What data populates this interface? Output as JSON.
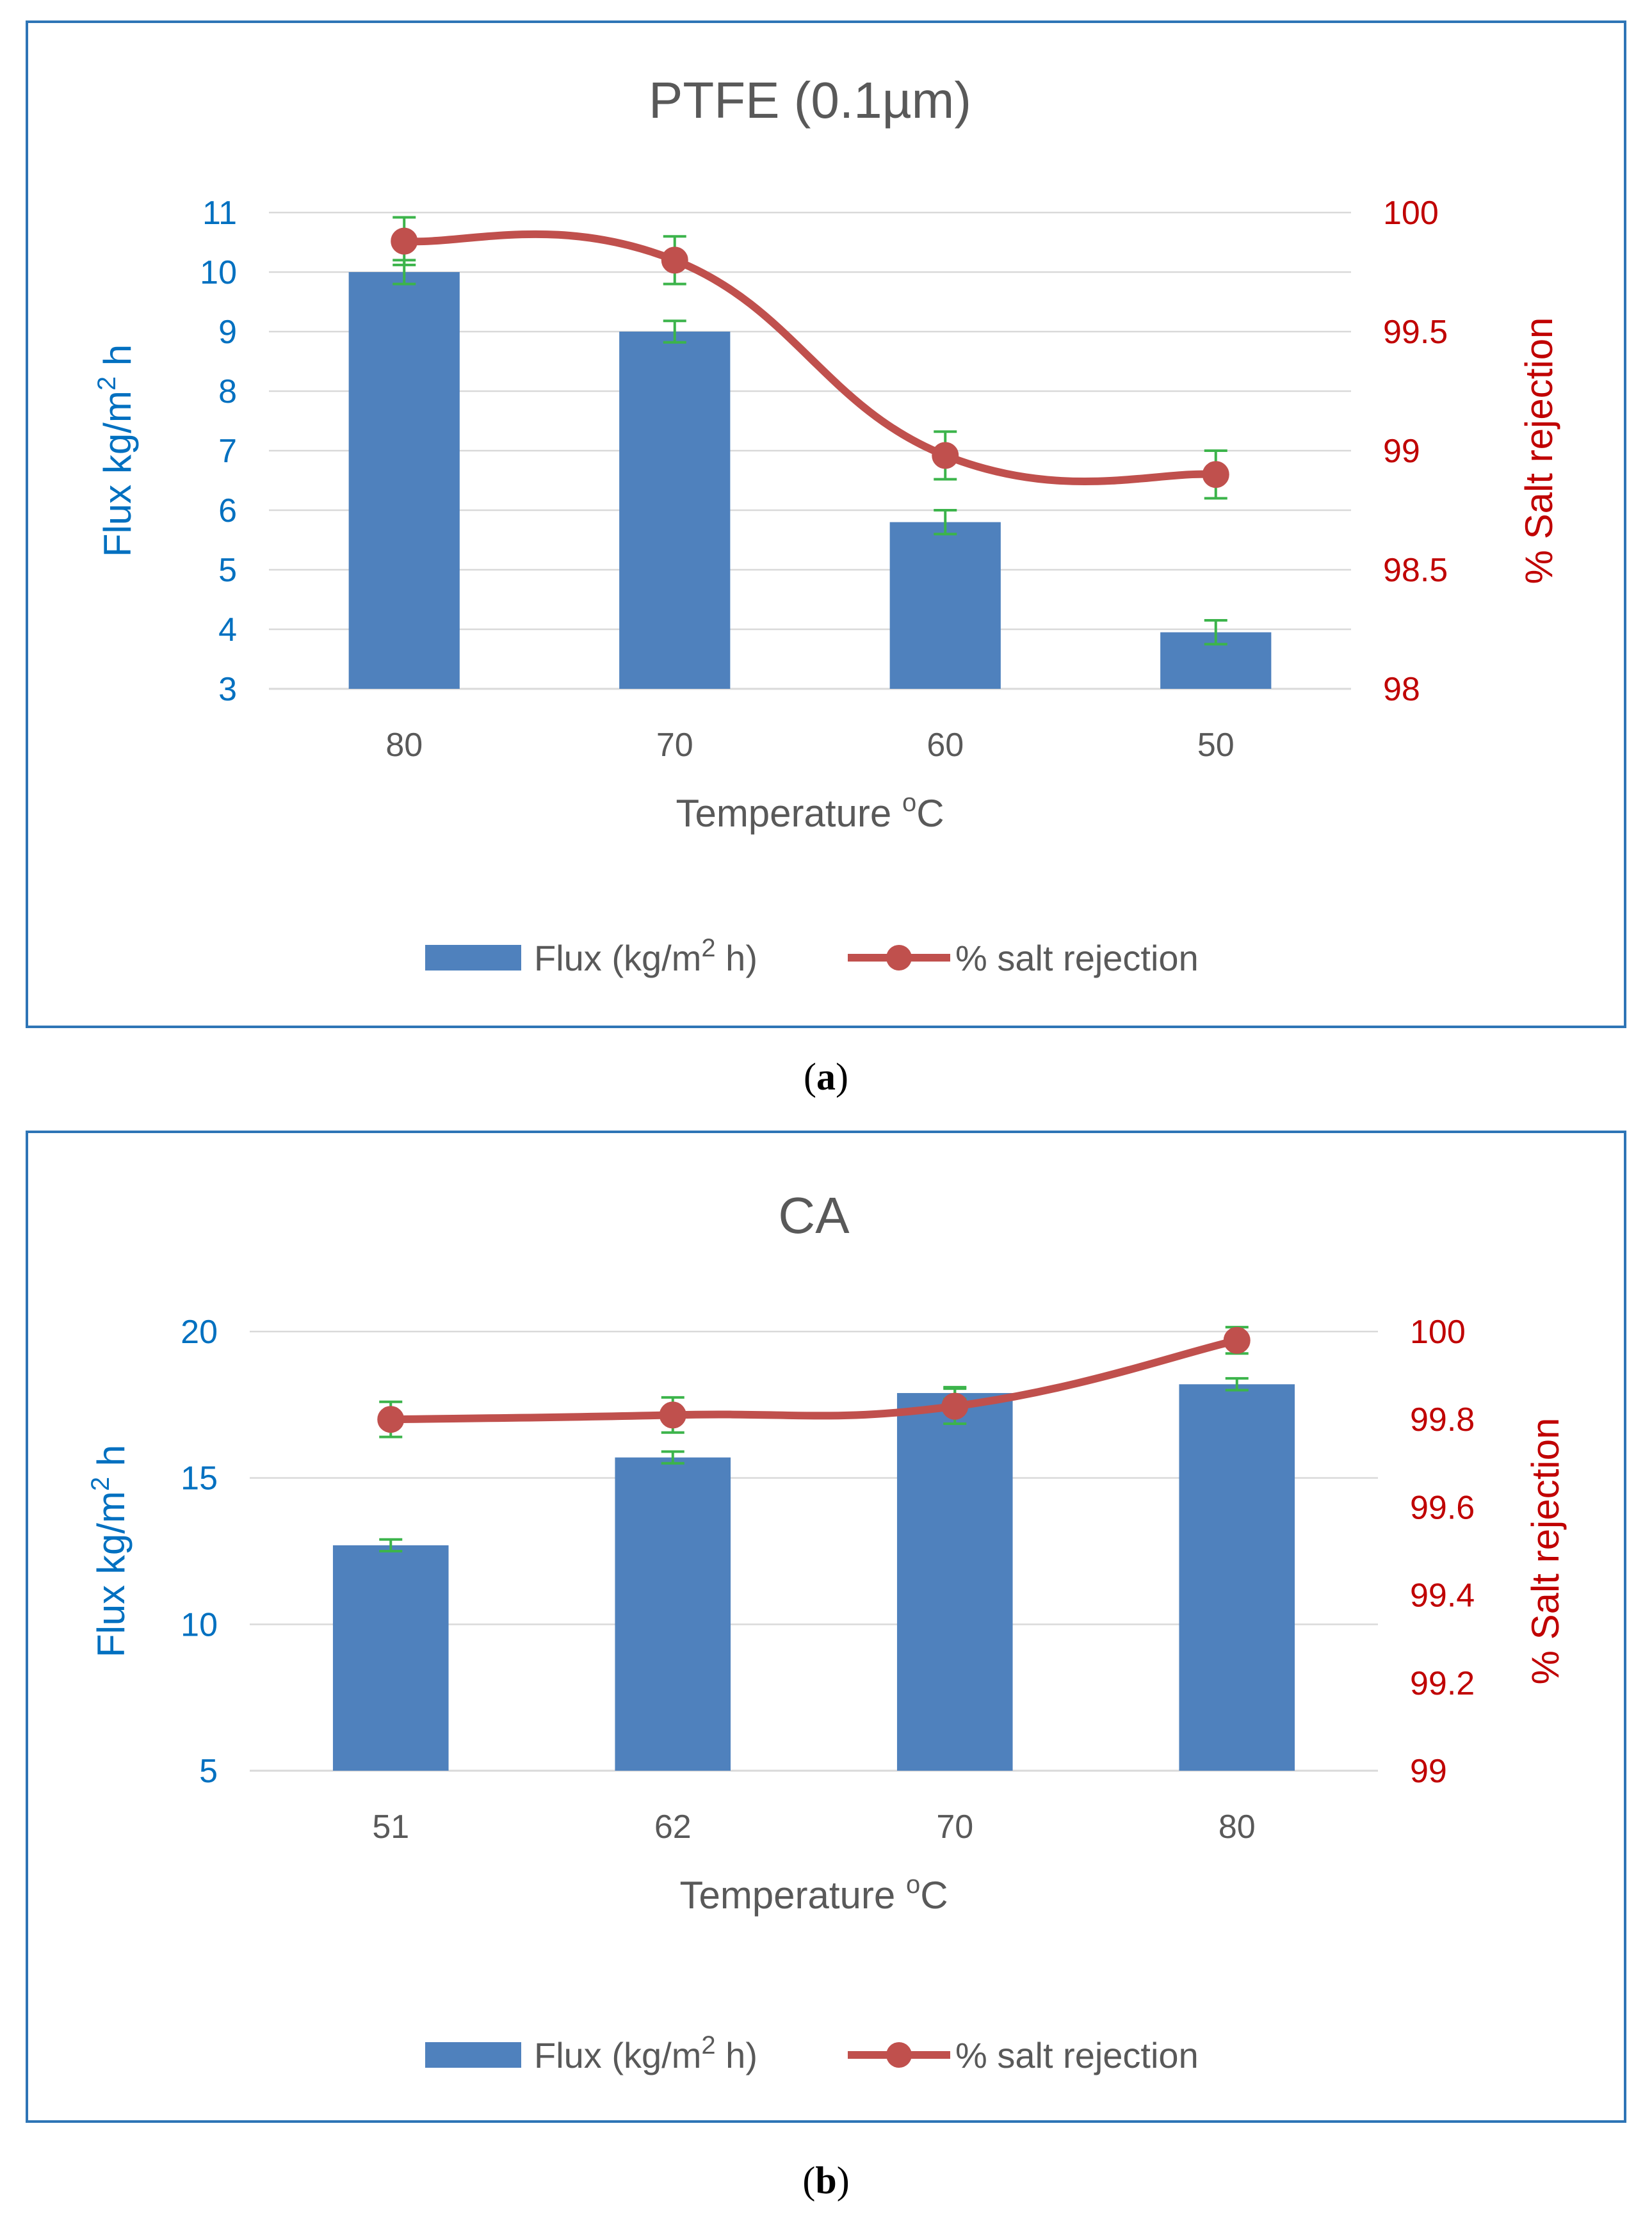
{
  "colors": {
    "border": "#2e75b6",
    "bar": "#4f81bd",
    "line": "#c0504d",
    "left_axis_text": "#0070c0",
    "right_axis_text": "#c00000",
    "error_bar": "#3cb44b",
    "grid": "#d9d9d9",
    "title_text": "#595959"
  },
  "captions": {
    "a_label": "a",
    "b_label": "b"
  },
  "chart_data": [
    {
      "type": "bar",
      "title": "PTFE (0.1µm)",
      "xlabel": "Temperature",
      "xlabel_sup": "o",
      "xlabel_suffix": "C",
      "ylabel": "Flux kg/m",
      "ylabel_sup": "2",
      "ylabel_suffix": " h",
      "y2label": "% Salt rejection",
      "categories": [
        "80",
        "70",
        "60",
        "50"
      ],
      "ylim": [
        3,
        11
      ],
      "yticks": [
        "3",
        "4",
        "5",
        "6",
        "7",
        "8",
        "9",
        "10",
        "11"
      ],
      "y2lim": [
        98,
        100
      ],
      "y2ticks": [
        "98",
        "98.5",
        "99",
        "99.5",
        "100"
      ],
      "grid": true,
      "legend_position": "bottom",
      "series": [
        {
          "name": "Flux (kg/m",
          "name_sup": "2",
          "name_suffix": " h)",
          "type": "bar",
          "axis": "left",
          "values": [
            10.0,
            9.0,
            5.8,
            3.95
          ],
          "errors": [
            0.2,
            0.18,
            0.2,
            0.2
          ]
        },
        {
          "name": "% salt rejection",
          "type": "line",
          "axis": "right",
          "values": [
            99.88,
            99.8,
            98.98,
            98.9
          ],
          "errors": [
            0.1,
            0.1,
            0.1,
            0.1
          ]
        }
      ]
    },
    {
      "type": "bar",
      "title": "CA",
      "xlabel": "Temperature",
      "xlabel_sup": "o",
      "xlabel_suffix": "C",
      "ylabel": "Flux kg/m",
      "ylabel_sup": "2",
      "ylabel_suffix": " h",
      "y2label": "% Salt rejection",
      "categories": [
        "51",
        "62",
        "70",
        "80"
      ],
      "ylim": [
        5,
        20
      ],
      "yticks": [
        "5",
        "10",
        "15",
        "20"
      ],
      "y2lim": [
        99,
        100
      ],
      "y2ticks": [
        "99",
        "99.2",
        "99.4",
        "99.6",
        "99.8",
        "100"
      ],
      "grid": true,
      "legend_position": "bottom",
      "series": [
        {
          "name": "Flux (kg/m",
          "name_sup": "2",
          "name_suffix": " h)",
          "type": "bar",
          "axis": "left",
          "values": [
            12.7,
            15.7,
            17.9,
            18.2
          ],
          "errors": [
            0.2,
            0.2,
            0.2,
            0.2
          ]
        },
        {
          "name": "% salt rejection",
          "type": "line",
          "axis": "right",
          "values": [
            99.8,
            99.81,
            99.83,
            99.98
          ],
          "errors": [
            0.04,
            0.04,
            0.04,
            0.03
          ]
        }
      ]
    }
  ]
}
